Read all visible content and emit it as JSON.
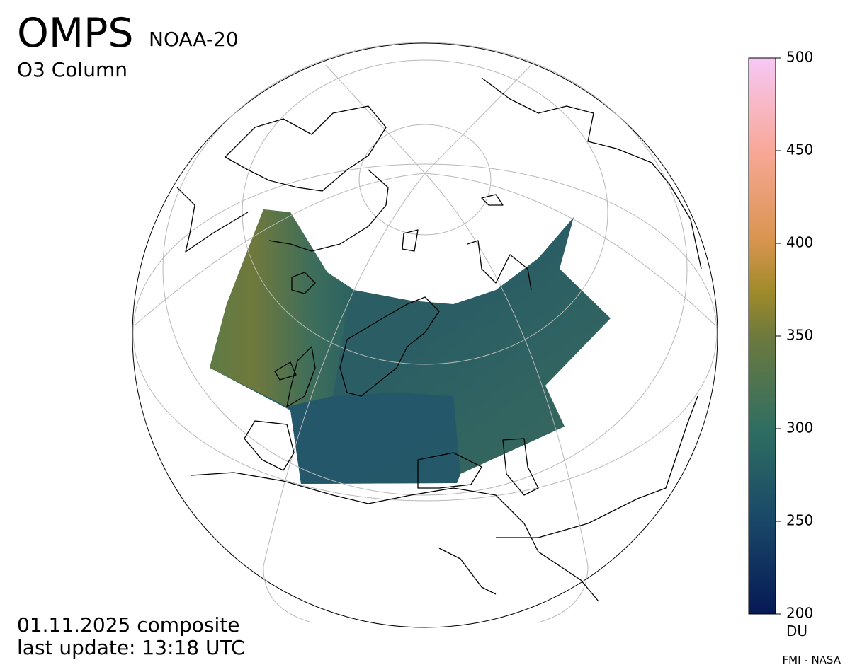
{
  "header": {
    "title": "OMPS",
    "satellite": "NOAA-20",
    "product": "O3 Column"
  },
  "colorbar": {
    "lim": [
      200,
      500
    ],
    "ticks": [
      200,
      250,
      300,
      350,
      400,
      450,
      500
    ],
    "unit": "DU"
  },
  "footer": {
    "date": "01.11.2025 composite",
    "update": "last update: 13:18 UTC",
    "credit": "FMI - NASA"
  }
}
